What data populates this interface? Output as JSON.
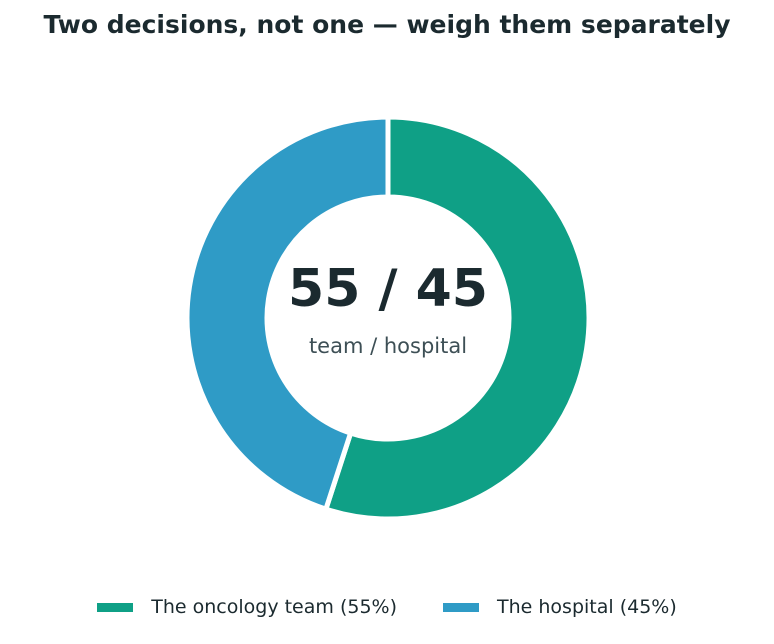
{
  "chart_data": {
    "type": "pie",
    "style": "donut",
    "title": "Two decisions, not one — weigh them separately",
    "categories": [
      "The oncology team (55%)",
      "The hospital (45%)"
    ],
    "values": [
      55,
      45
    ],
    "colors": [
      "#0fa086",
      "#2f9bc6"
    ],
    "center_value": "55 / 45",
    "center_label": "team / hospital",
    "legend": {
      "position": "bottom-center",
      "entries": [
        "The oncology team (55%)",
        "The hospital (45%)"
      ]
    }
  }
}
